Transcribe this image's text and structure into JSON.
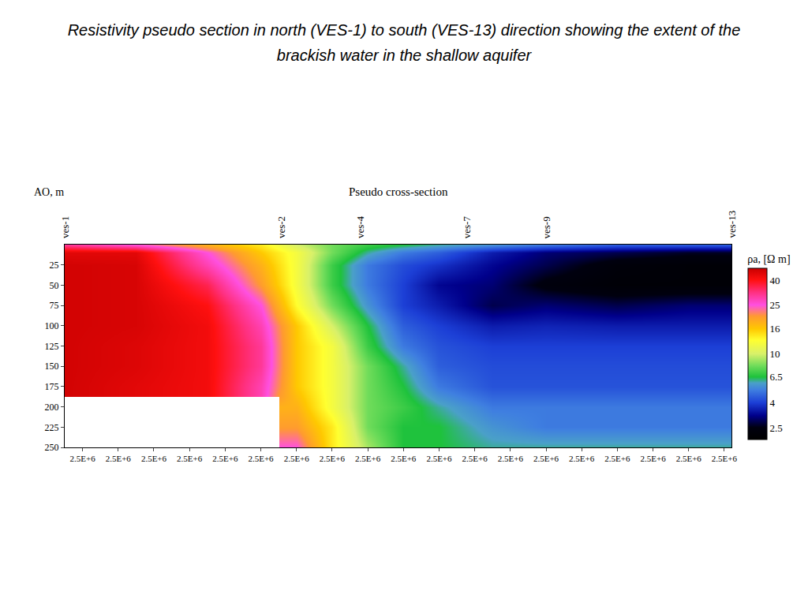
{
  "page_title": "Resistivity pseudo section in north (VES-1) to south (VES-13) direction showing the extent of the brackish water in the shallow aquifer",
  "chart_data": {
    "type": "heatmap",
    "title": "Pseudo cross-section",
    "y_label": "AO, m",
    "colorbar_title": "ρa, [Ω m]",
    "x": [
      2499900,
      2500300,
      2500700,
      2501000,
      2501200,
      2501400,
      2501600,
      2501800,
      2502000,
      2502300,
      2502600,
      2503000,
      2503400,
      2503640
    ],
    "y": [
      0,
      10,
      25,
      50,
      75,
      100,
      125,
      150,
      175,
      200,
      225,
      250
    ],
    "cells": [
      [
        30,
        25,
        18,
        14,
        10,
        8,
        7,
        6.5,
        6,
        5.5,
        5,
        4.5,
        4.5,
        4.5
      ],
      [
        45,
        45,
        25,
        16,
        12,
        8,
        6,
        5,
        4.5,
        3.5,
        3,
        2.8,
        2.6,
        2.6
      ],
      [
        48,
        47,
        28,
        18,
        12,
        7,
        5,
        4.2,
        3.8,
        3.2,
        2.8,
        2.3,
        2.2,
        2.2
      ],
      [
        48,
        47,
        35,
        20,
        12,
        7,
        5,
        4,
        3.2,
        3,
        2.4,
        2.2,
        2.2,
        2.2
      ],
      [
        48,
        47,
        40,
        25,
        13,
        8,
        5.5,
        4,
        3.5,
        2.8,
        3,
        2.8,
        3,
        3
      ],
      [
        48,
        47,
        42,
        28,
        16,
        10,
        6.5,
        4.5,
        4,
        3.5,
        3.6,
        3.5,
        3.5,
        3.5
      ],
      [
        48,
        46,
        42,
        30,
        16,
        12,
        7,
        5,
        4.3,
        4,
        4,
        4,
        4,
        4
      ],
      [
        48,
        46,
        42,
        30,
        16,
        12,
        8,
        6,
        4.5,
        4.2,
        4.2,
        4.2,
        4.2,
        4.2
      ],
      [
        48,
        45,
        42,
        28,
        16,
        12,
        8,
        6.5,
        5,
        4.3,
        4.3,
        4.3,
        4.3,
        4.3
      ],
      [
        null,
        null,
        null,
        null,
        18,
        12,
        8,
        7,
        6,
        5,
        5,
        5,
        5,
        5
      ],
      [
        null,
        null,
        null,
        null,
        20,
        14,
        8,
        6.5,
        6.5,
        5.5,
        5,
        5,
        5,
        5
      ],
      [
        null,
        null,
        null,
        null,
        25,
        14,
        9,
        6.5,
        6.5,
        6,
        6,
        6,
        6,
        6
      ]
    ],
    "xlim": [
      2499900,
      2503640
    ],
    "xticks": [
      {
        "value": 2500000,
        "label": "2.5E+6"
      },
      {
        "value": 2500200,
        "label": "2.5E+6"
      },
      {
        "value": 2500400,
        "label": "2.5E+6"
      },
      {
        "value": 2500600,
        "label": "2.5E+6"
      },
      {
        "value": 2500800,
        "label": "2.5E+6"
      },
      {
        "value": 2501000,
        "label": "2.5E+6"
      },
      {
        "value": 2501200,
        "label": "2.5E+6"
      },
      {
        "value": 2501400,
        "label": "2.5E+6"
      },
      {
        "value": 2501600,
        "label": "2.5E+6"
      },
      {
        "value": 2501800,
        "label": "2.5E+6"
      },
      {
        "value": 2502000,
        "label": "2.5E+6"
      },
      {
        "value": 2502200,
        "label": "2.5E+6"
      },
      {
        "value": 2502400,
        "label": "2.5E+6"
      },
      {
        "value": 2502600,
        "label": "2.5E+6"
      },
      {
        "value": 2502800,
        "label": "2.5E+6"
      },
      {
        "value": 2503000,
        "label": "2.5E+6"
      },
      {
        "value": 2503200,
        "label": "2.5E+6"
      },
      {
        "value": 2503400,
        "label": "2.5E+6"
      },
      {
        "value": 2503600,
        "label": "2.5E+6"
      }
    ],
    "ylim": [
      250,
      0
    ],
    "yticks": [
      25,
      50,
      75,
      100,
      125,
      150,
      175,
      200,
      225,
      250
    ],
    "zlim": [
      2,
      50
    ],
    "zticks": [
      2.5,
      4,
      6.5,
      10,
      16,
      25,
      40
    ],
    "stations": [
      {
        "label": "ves-1",
        "x": 2499900
      },
      {
        "label": "ves-2",
        "x": 2501113
      },
      {
        "label": "ves-4",
        "x": 2501558
      },
      {
        "label": "ves-7",
        "x": 2502156
      },
      {
        "label": "ves-9",
        "x": 2502602
      },
      {
        "label": "ves-13",
        "x": 2503640
      }
    ],
    "grid": false
  }
}
